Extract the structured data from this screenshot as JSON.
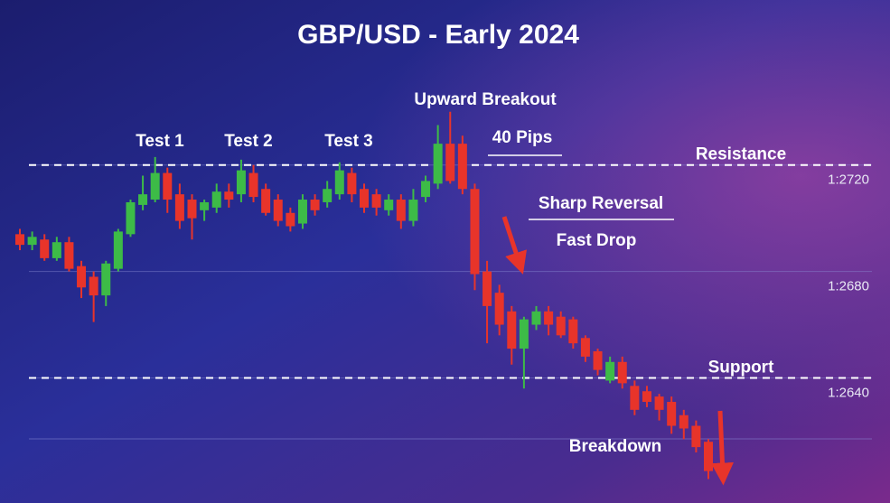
{
  "chart_data": {
    "type": "candlestick",
    "title": "GBP/USD - Early 2024",
    "ylim": [
      1.2593,
      1.2782
    ],
    "yticks": [
      {
        "value": 1.272,
        "label": "1:2720"
      },
      {
        "value": 1.268,
        "label": "1:2680"
      },
      {
        "value": 1.264,
        "label": "1:2640"
      }
    ],
    "levels": [
      {
        "label": "Resistance",
        "value": 1.272
      },
      {
        "label": "Support",
        "value": 1.264
      }
    ],
    "annotations": {
      "test_1": "Test 1",
      "test_2": "Test 2",
      "test_3": "Test 3",
      "upward_breakout": "Upward Breakout",
      "pips": "40 Pips",
      "sharp_reversal": "Sharp Reversal",
      "fast_drop": "Fast Drop",
      "breakdown": "Breakdown"
    },
    "up_color": "#3dbb47",
    "down_color": "#e8342a",
    "open": [
      1.2694,
      1.269,
      1.2692,
      1.2685,
      1.2691,
      1.2682,
      1.2678,
      1.2671,
      1.2681,
      1.2694,
      1.2705,
      1.2707,
      1.2717,
      1.2709,
      1.2707,
      1.2703,
      1.2704,
      1.271,
      1.2709,
      1.2717,
      1.2711,
      1.2707,
      1.2702,
      1.2698,
      1.2707,
      1.2706,
      1.2709,
      1.2717,
      1.2711,
      1.2709,
      1.2703,
      1.2707,
      1.2699,
      1.2708,
      1.2713,
      1.2728,
      1.2728,
      1.2711,
      1.268,
      1.2672,
      1.2665,
      1.2651,
      1.266,
      1.2665,
      1.2663,
      1.2662,
      1.2655,
      1.265,
      1.2639,
      1.2646,
      1.2637,
      1.2635,
      1.2633,
      1.2631,
      1.2626,
      1.2622,
      1.2616
    ],
    "high": [
      1.2696,
      1.2695,
      1.2694,
      1.2693,
      1.2693,
      1.2684,
      1.268,
      1.2684,
      1.2696,
      1.2707,
      1.2716,
      1.2723,
      1.2719,
      1.2713,
      1.2709,
      1.2707,
      1.2713,
      1.2713,
      1.2722,
      1.272,
      1.2713,
      1.2709,
      1.2704,
      1.2709,
      1.2709,
      1.2714,
      1.2721,
      1.2719,
      1.2713,
      1.2711,
      1.2709,
      1.2709,
      1.2711,
      1.2716,
      1.2735,
      1.274,
      1.2731,
      1.2713,
      1.2684,
      1.2675,
      1.2667,
      1.2663,
      1.2667,
      1.2667,
      1.2665,
      1.2663,
      1.2656,
      1.2651,
      1.2648,
      1.2648,
      1.2639,
      1.2637,
      1.2634,
      1.2633,
      1.2628,
      1.2624,
      1.2617
    ],
    "low": [
      1.2688,
      1.2688,
      1.2684,
      1.2684,
      1.268,
      1.267,
      1.2661,
      1.2667,
      1.268,
      1.2693,
      1.2703,
      1.2706,
      1.2702,
      1.2696,
      1.2692,
      1.2699,
      1.2702,
      1.2704,
      1.2706,
      1.2706,
      1.2701,
      1.2697,
      1.2695,
      1.2696,
      1.2701,
      1.2704,
      1.2707,
      1.2706,
      1.2702,
      1.2701,
      1.2701,
      1.2696,
      1.2697,
      1.2706,
      1.2711,
      1.2713,
      1.2709,
      1.2673,
      1.2653,
      1.2656,
      1.2645,
      1.2636,
      1.2658,
      1.2656,
      1.2655,
      1.2651,
      1.2646,
      1.2641,
      1.2638,
      1.2636,
      1.2626,
      1.2629,
      1.2624,
      1.2619,
      1.2617,
      1.2612,
      1.2602
    ],
    "close": [
      1.269,
      1.2693,
      1.2685,
      1.2691,
      1.2681,
      1.2674,
      1.2671,
      1.2683,
      1.2695,
      1.2706,
      1.2709,
      1.2717,
      1.2707,
      1.2699,
      1.27,
      1.2706,
      1.271,
      1.2707,
      1.2718,
      1.2708,
      1.2702,
      1.2699,
      1.2697,
      1.2707,
      1.2703,
      1.2711,
      1.2718,
      1.2709,
      1.2704,
      1.2704,
      1.2707,
      1.2699,
      1.2707,
      1.2714,
      1.2728,
      1.2714,
      1.2711,
      1.2679,
      1.2667,
      1.266,
      1.2651,
      1.2662,
      1.2665,
      1.266,
      1.2656,
      1.2653,
      1.2648,
      1.2643,
      1.2646,
      1.2638,
      1.2628,
      1.2631,
      1.2628,
      1.2622,
      1.2621,
      1.2614,
      1.2605
    ]
  }
}
